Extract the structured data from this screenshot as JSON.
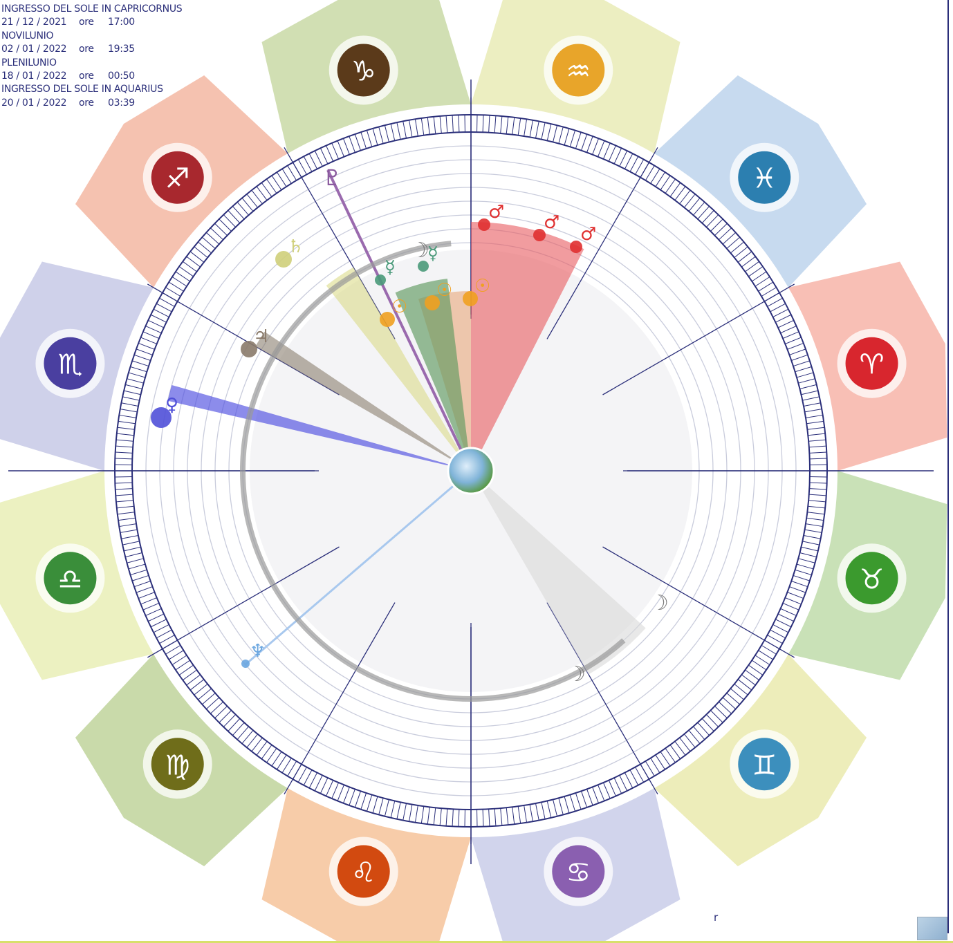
{
  "info": {
    "lines": [
      {
        "title": "INGRESSO DEL SOLE IN CAPRICORNUS",
        "date": "21 / 12 / 2021",
        "ore": "ore",
        "time": "17:00"
      },
      {
        "title": "NOVILUNIO",
        "date": "02 / 01 / 2022",
        "ore": "ore",
        "time": "19:35"
      },
      {
        "title": "PLENILUNIO",
        "date": "18 / 01 / 2022",
        "ore": "ore",
        "time": "00:50"
      },
      {
        "title": "INGRESSO DEL SOLE IN AQUARIUS",
        "date": "20 / 01 / 2022",
        "ore": "ore",
        "time": "03:39"
      }
    ]
  },
  "signs": [
    {
      "name": "capricorn-icon",
      "glyph": "♑",
      "color": "#5b3a1a",
      "band": "#c9d9a6"
    },
    {
      "name": "sagittarius-icon",
      "glyph": "♐",
      "color": "#a8282e",
      "band": "#f3b7a2"
    },
    {
      "name": "scorpio-icon",
      "glyph": "♏",
      "color": "#4a3fa0",
      "band": "#c7c9e6"
    },
    {
      "name": "libra-icon",
      "glyph": "♎",
      "color": "#3a8e3a",
      "band": "#e9efb6"
    },
    {
      "name": "virgo-icon",
      "glyph": "♍",
      "color": "#6f6d1a",
      "band": "#bfd39b"
    },
    {
      "name": "leo-icon",
      "glyph": "♌",
      "color": "#d24a10",
      "band": "#f6c39a"
    },
    {
      "name": "cancer-icon",
      "glyph": "♋",
      "color": "#8a5fb0",
      "band": "#c9cde9"
    },
    {
      "name": "gemini-icon",
      "glyph": "♊",
      "color": "#3c8fbd",
      "band": "#eaeaae"
    },
    {
      "name": "taurus-icon",
      "glyph": "♉",
      "color": "#3b9a2e",
      "band": "#bfdcaa"
    },
    {
      "name": "aries-icon",
      "glyph": "♈",
      "color": "#d8262e",
      "band": "#f7b4a8"
    },
    {
      "name": "pisces-icon",
      "glyph": "♓",
      "color": "#2c7fb0",
      "band": "#bdd4ec"
    },
    {
      "name": "aquarius-icon",
      "glyph": "♒",
      "color": "#e8a52a",
      "band": "#e9ebb6"
    }
  ],
  "planets": [
    {
      "name": "pluto-icon",
      "glyph": "♇",
      "color": "#8a5a9e"
    },
    {
      "name": "mars-icon",
      "glyph": "♂",
      "color": "#e03030"
    },
    {
      "name": "moon-icon",
      "glyph": "☽",
      "color": "#7a7a7a"
    },
    {
      "name": "saturn-icon",
      "glyph": "♄",
      "color": "#cfcf7a"
    },
    {
      "name": "jupiter-icon",
      "glyph": "♃",
      "color": "#8a7a6a"
    },
    {
      "name": "venus-icon",
      "glyph": "♀",
      "color": "#5050d8"
    },
    {
      "name": "neptune-icon",
      "glyph": "♆",
      "color": "#6aa6e0"
    },
    {
      "name": "sun-icon",
      "glyph": "☉",
      "color": "#f0a020"
    },
    {
      "name": "mercury-icon",
      "glyph": "☿",
      "color": "#4a9a7a"
    }
  ],
  "retro_mark": "r",
  "colors": {
    "ink": "#2b2f7a",
    "mars": "#e85a5f",
    "sun": "#e8a070",
    "mercury": "#5f9a5f",
    "saturn": "#d8d880",
    "jupiter": "#8a7f6f",
    "venus": "#4f4fe0",
    "neptune": "#a8c8ee",
    "moon_path": "#9a9a9a"
  }
}
